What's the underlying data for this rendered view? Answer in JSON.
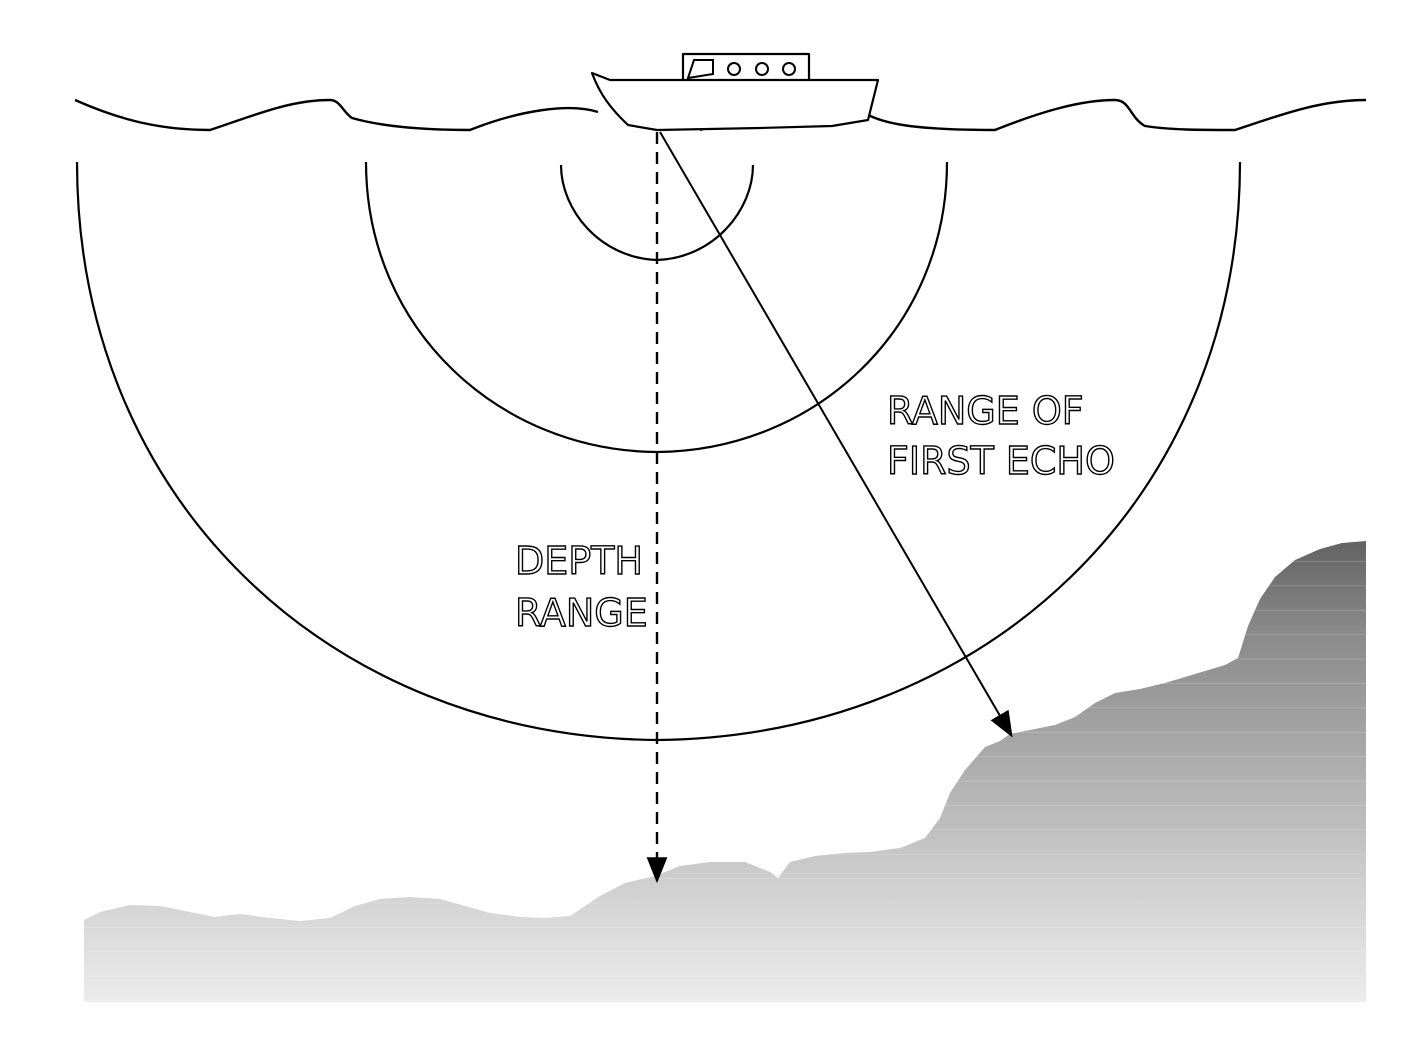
{
  "labels": {
    "depth_line1": "DEPTH",
    "depth_line2": "RANGE",
    "echo_line1": "RANGE OF",
    "echo_line2": "FIRST ECHO"
  },
  "colors": {
    "line": "#000000",
    "seabed_light": "#e8e8e8",
    "seabed_dark": "#666666"
  }
}
